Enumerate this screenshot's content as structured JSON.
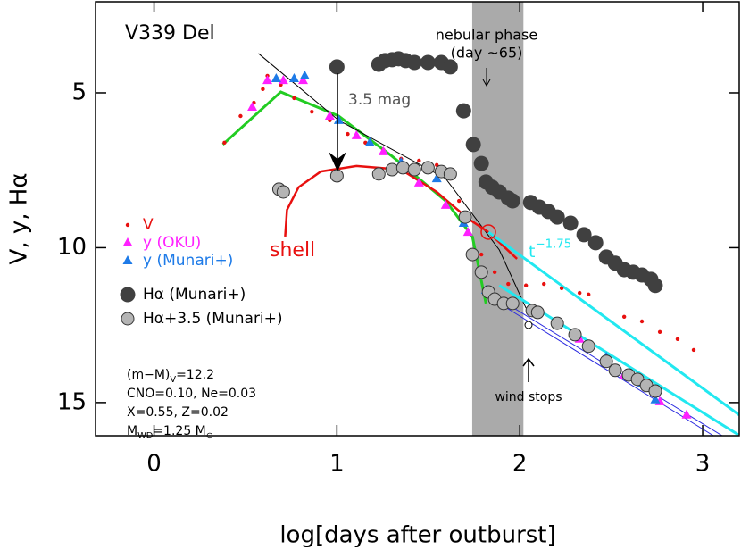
{
  "chart_data": {
    "type": "scatter",
    "title": "V339 Del",
    "x_label": "log[days after outburst]",
    "y_label": "V, y, Hα",
    "xlim": [
      -0.32,
      3.2
    ],
    "ylim": [
      16.07,
      2.06
    ],
    "xticks": [
      0,
      1,
      2,
      3
    ],
    "yticks": [
      5,
      10,
      15
    ],
    "band": {
      "xlim": [
        1.74,
        2.02
      ],
      "color": "#aaaaaa"
    },
    "series": [
      {
        "name": "V",
        "color": "#e8100f",
        "marker": "dot",
        "x": [
          0.385,
          0.473,
          0.546,
          0.595,
          0.62,
          0.693,
          0.766,
          0.863,
          0.961,
          1.059,
          1.156,
          1.254,
          1.351,
          1.449,
          1.546,
          1.62,
          1.668,
          1.717,
          1.79,
          1.863,
          1.937,
          2.034,
          2.132,
          2.229,
          2.327,
          2.376,
          2.571,
          2.668,
          2.766,
          2.863,
          2.951
        ],
        "values": [
          6.61,
          5.75,
          5.32,
          4.88,
          4.45,
          4.74,
          5.17,
          5.61,
          5.89,
          6.33,
          6.61,
          6.84,
          7.13,
          7.19,
          7.33,
          7.77,
          8.49,
          9.06,
          10.22,
          10.79,
          11.17,
          11.22,
          11.17,
          11.31,
          11.46,
          11.51,
          12.23,
          12.38,
          12.72,
          12.95,
          13.3
        ]
      },
      {
        "name": "y (OKU)",
        "color": "#ff20ff",
        "marker": "triangle",
        "x": [
          0.537,
          0.62,
          0.707,
          0.815,
          0.961,
          1.107,
          1.254,
          1.449,
          1.595,
          1.717,
          2.327,
          2.571,
          2.766,
          2.912
        ],
        "values": [
          5.46,
          4.6,
          4.6,
          4.6,
          5.75,
          6.38,
          6.9,
          7.91,
          8.63,
          9.5,
          12.95,
          14.11,
          14.97,
          15.4
        ]
      },
      {
        "name": "y (Munari+)",
        "color": "#1e7be8",
        "marker": "triangle",
        "x": [
          0.668,
          0.766,
          0.824,
          1.01,
          1.18,
          1.351,
          1.546,
          1.693,
          1.815,
          1.937,
          2.083,
          2.473,
          2.668,
          2.741
        ],
        "values": [
          4.54,
          4.54,
          4.45,
          5.89,
          6.61,
          7.25,
          7.77,
          9.21,
          11.37,
          11.8,
          12.03,
          13.53,
          14.39,
          14.91
        ]
      },
      {
        "name": "Hα (Munari+)",
        "color": "#404040",
        "marker": "big-circle",
        "x": [
          1.0,
          1.229,
          1.263,
          1.302,
          1.337,
          1.376,
          1.424,
          1.498,
          1.571,
          1.62,
          1.693,
          1.746,
          1.79,
          1.815,
          1.849,
          1.888,
          1.937,
          1.961,
          2.059,
          2.107,
          2.156,
          2.205,
          2.278,
          2.351,
          2.415,
          2.473,
          2.522,
          2.571,
          2.62,
          2.668,
          2.717,
          2.741
        ],
        "values": [
          4.16,
          4.08,
          3.96,
          3.93,
          3.9,
          3.96,
          4.02,
          4.02,
          4.02,
          4.16,
          5.58,
          6.67,
          7.28,
          7.88,
          8.05,
          8.2,
          8.4,
          8.49,
          8.54,
          8.69,
          8.83,
          9.01,
          9.21,
          9.58,
          9.84,
          10.3,
          10.5,
          10.71,
          10.79,
          10.88,
          11.02,
          11.22
        ]
      },
      {
        "name": "Hα+3.5 (Munari+)",
        "color": "#b4b4b4",
        "marker": "circle",
        "x": [
          0.683,
          0.707,
          1.0,
          1.229,
          1.302,
          1.361,
          1.424,
          1.498,
          1.571,
          1.62,
          1.702,
          1.741,
          1.79,
          1.829,
          1.863,
          1.912,
          1.961,
          2.068,
          2.098,
          2.205,
          2.302,
          2.376,
          2.473,
          2.522,
          2.595,
          2.644,
          2.693,
          2.741
        ],
        "values": [
          8.11,
          8.2,
          7.68,
          7.62,
          7.48,
          7.42,
          7.48,
          7.42,
          7.54,
          7.62,
          9.01,
          10.22,
          10.79,
          11.43,
          11.66,
          11.8,
          11.8,
          12.03,
          12.09,
          12.44,
          12.81,
          13.18,
          13.67,
          13.96,
          14.11,
          14.25,
          14.45,
          14.63
        ]
      }
    ],
    "lines": [
      {
        "color": "#22cc22",
        "width": 3,
        "x": [
          0.376,
          0.693,
          1.01,
          1.302,
          1.595,
          1.741,
          1.815
        ],
        "values": [
          6.67,
          4.97,
          5.75,
          7.05,
          8.49,
          9.64,
          11.8
        ]
      },
      {
        "color": "#000000",
        "width": 1,
        "x": [
          0.571,
          1.01,
          1.595,
          1.888,
          2.034
        ],
        "values": [
          3.73,
          5.89,
          7.77,
          10.07,
          11.95
        ]
      },
      {
        "color": "#e8100f",
        "width": 2.5,
        "x": [
          0.717,
          0.727,
          0.79,
          0.912,
          1.107,
          1.351,
          1.546,
          1.717,
          1.829,
          1.985
        ],
        "values": [
          9.64,
          8.78,
          8.05,
          7.54,
          7.36,
          7.48,
          8.2,
          9.06,
          9.5,
          10.36
        ]
      },
      {
        "color": "#2a2ae0",
        "width": 1,
        "x": [
          1.888,
          3.107
        ],
        "values": [
          11.66,
          16.07
        ]
      },
      {
        "color": "#2a2ae0",
        "width": 1,
        "x": [
          1.888,
          3.059
        ],
        "values": [
          11.8,
          16.07
        ]
      },
      {
        "color": "#22e8f0",
        "width": 3,
        "x": [
          1.829,
          3.2
        ],
        "values": [
          9.5,
          15.4
        ]
      },
      {
        "color": "#22e8f0",
        "width": 3,
        "x": [
          1.888,
          3.195
        ],
        "values": [
          11.22,
          16.04
        ]
      }
    ],
    "annotations": {
      "nebular": [
        "nebular phase",
        "(day ~65)"
      ],
      "drop": "3.5 mag",
      "shell": "shell",
      "wind": "wind stops",
      "power": [
        {
          "text": "t"
        },
        {
          "sup": "−1.75"
        }
      ],
      "params": [
        [
          {
            "text": "(m−M)"
          },
          {
            "sub": "V"
          },
          {
            "text": "=12.2"
          }
        ],
        [
          {
            "text": "CNO=0.10, Ne=0.03"
          }
        ],
        [
          {
            "text": "X=0.55, Z=0.02"
          }
        ],
        [
          {
            "text": "M"
          },
          {
            "sub": "WD"
          },
          {
            "text": "=1.25 M"
          },
          {
            "sub": "⊙"
          }
        ]
      ]
    }
  }
}
